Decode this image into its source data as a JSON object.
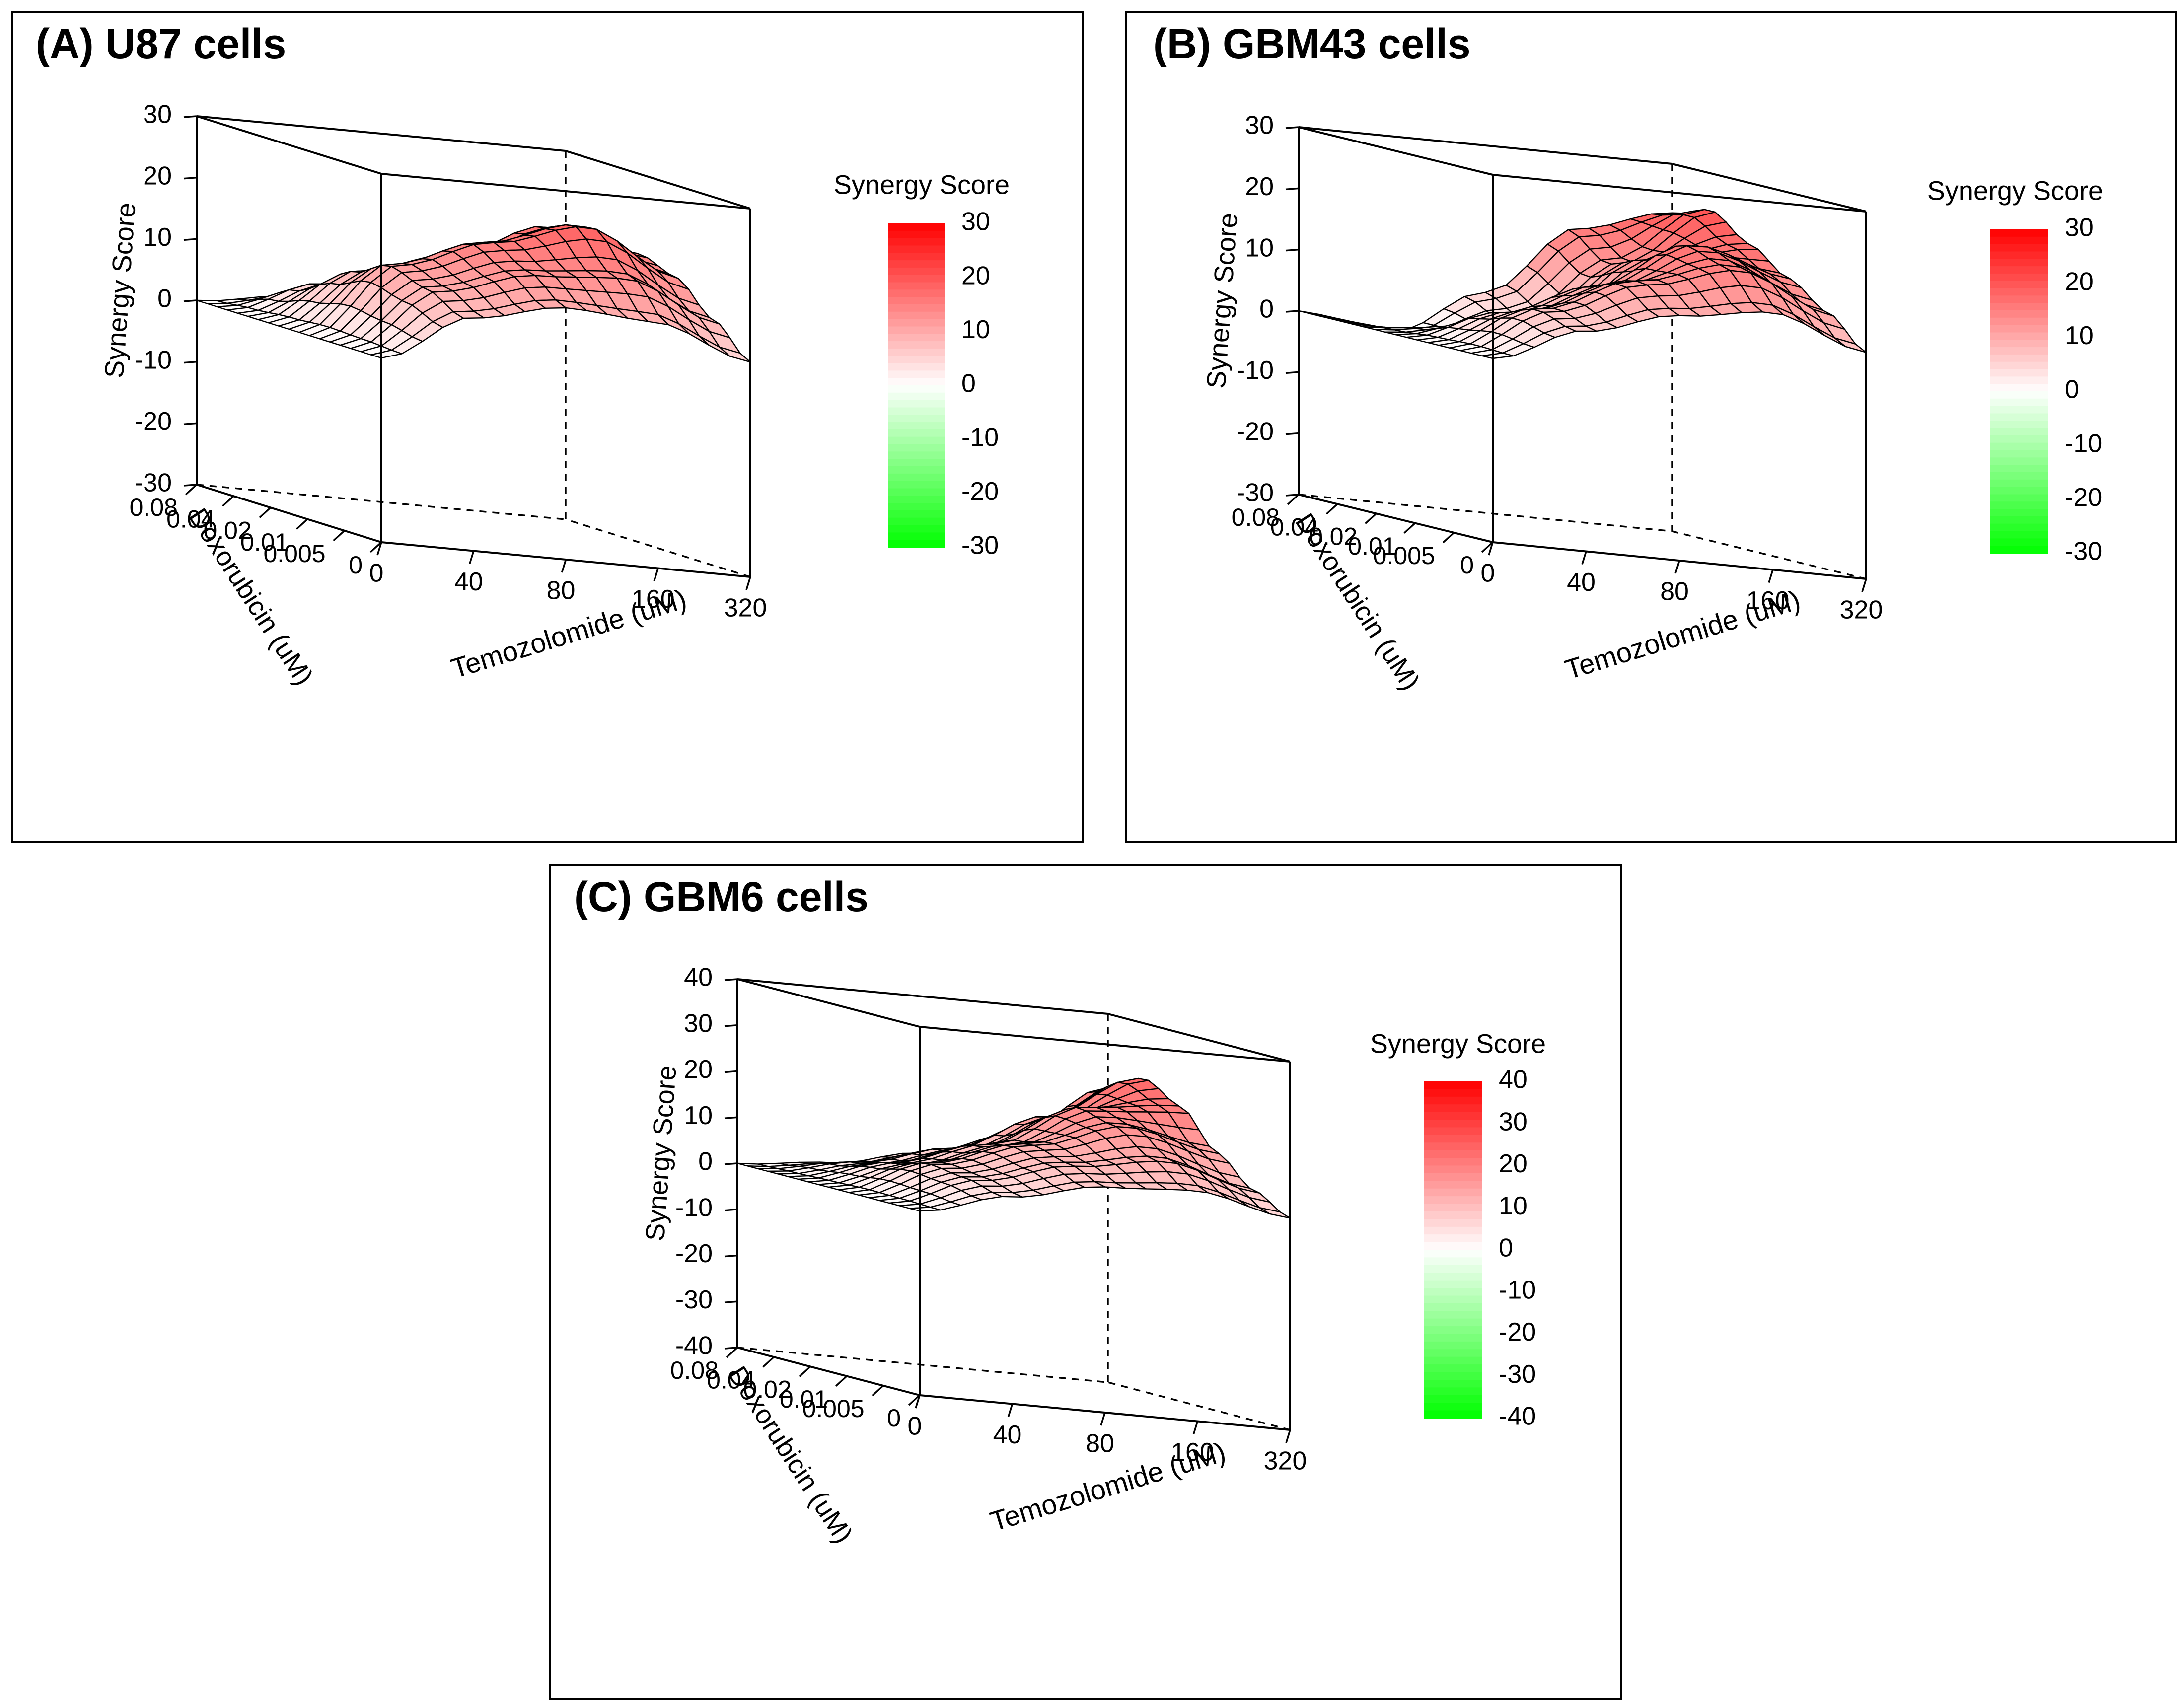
{
  "chart_data": [
    {
      "type": "surface3d",
      "panel_title": "(A) U87 cells",
      "title": "U87 cells",
      "xlabel": "Temozolomide (uM)",
      "ylabel": "Doxorubicin (uM)",
      "zlabel": "Synergy Score",
      "x_ticks": [
        "0",
        "40",
        "80",
        "160",
        "320"
      ],
      "y_ticks": [
        "0",
        "0.005",
        "0.01",
        "0.02",
        "0.04",
        "0.08"
      ],
      "z_ticks": [
        -30,
        -20,
        -10,
        0,
        10,
        20,
        30
      ],
      "zlim": [
        -30,
        30
      ],
      "legend": {
        "title": "Synergy Score",
        "ticks": [
          30,
          20,
          10,
          0,
          -10,
          -20,
          -30
        ],
        "high_color": "#ff0000",
        "mid_color": "#ffffff",
        "low_color": "#00ff00"
      },
      "grid_x": [
        0,
        40,
        80,
        160,
        320
      ],
      "grid_y": [
        0,
        0.005,
        0.01,
        0.02,
        0.04,
        0.08
      ],
      "values": [
        [
          0,
          0,
          0,
          0,
          0,
          0
        ],
        [
          8,
          11,
          13,
          10,
          6,
          2
        ],
        [
          11,
          15,
          18,
          14,
          9,
          4
        ],
        [
          10,
          16,
          22,
          20,
          13,
          6
        ],
        [
          5,
          10,
          15,
          17,
          11,
          5
        ]
      ]
    },
    {
      "type": "surface3d",
      "panel_title": "(B) GBM43 cells",
      "title": "GBM43 cells",
      "xlabel": "Temozolomide (uM)",
      "ylabel": "Doxorubicin (uM)",
      "zlabel": "Synergy Score",
      "x_ticks": [
        "0",
        "40",
        "80",
        "160",
        "320"
      ],
      "y_ticks": [
        "0",
        "0.005",
        "0.01",
        "0.02",
        "0.04",
        "0.08"
      ],
      "z_ticks": [
        -30,
        -20,
        -10,
        0,
        10,
        20,
        30
      ],
      "zlim": [
        -30,
        30
      ],
      "legend": {
        "title": "Synergy Score",
        "ticks": [
          30,
          20,
          10,
          0,
          -10,
          -20,
          -30
        ],
        "high_color": "#ff0000",
        "mid_color": "#ffffff",
        "low_color": "#00ff00"
      },
      "grid_x": [
        0,
        40,
        80,
        160,
        320
      ],
      "grid_y": [
        0,
        0.005,
        0.01,
        0.02,
        0.04,
        0.08
      ],
      "values": [
        [
          0,
          0,
          0,
          0,
          0,
          0
        ],
        [
          6,
          8,
          6,
          2,
          -1,
          -2
        ],
        [
          10,
          14,
          12,
          6,
          3,
          6
        ],
        [
          12,
          18,
          20,
          16,
          14,
          18
        ],
        [
          7,
          12,
          16,
          20,
          24,
          22
        ]
      ]
    },
    {
      "type": "surface3d",
      "panel_title": "(C) GBM6 cells",
      "title": "GBM6 cells",
      "xlabel": "Temozolomide (uM)",
      "ylabel": "Doxorubicin (uM)",
      "zlabel": "Synergy Score",
      "x_ticks": [
        "0",
        "40",
        "80",
        "160",
        "320"
      ],
      "y_ticks": [
        "0",
        "0.005",
        "0.01",
        "0.02",
        "0.04",
        "0.08"
      ],
      "z_ticks": [
        -40,
        -30,
        -20,
        -10,
        0,
        10,
        20,
        30,
        40
      ],
      "zlim": [
        -40,
        40
      ],
      "legend": {
        "title": "Synergy Score",
        "ticks": [
          40,
          30,
          20,
          10,
          0,
          -10,
          -20,
          -30,
          -40
        ],
        "high_color": "#ff0000",
        "mid_color": "#ffffff",
        "low_color": "#00ff00"
      },
      "grid_x": [
        0,
        40,
        80,
        160,
        320
      ],
      "grid_y": [
        0,
        0.005,
        0.01,
        0.02,
        0.04,
        0.08
      ],
      "values": [
        [
          0,
          0,
          0,
          0,
          0,
          0
        ],
        [
          5,
          7,
          8,
          6,
          4,
          2
        ],
        [
          9,
          12,
          14,
          12,
          9,
          6
        ],
        [
          10,
          15,
          20,
          22,
          18,
          12
        ],
        [
          6,
          10,
          16,
          24,
          28,
          24
        ]
      ]
    }
  ]
}
